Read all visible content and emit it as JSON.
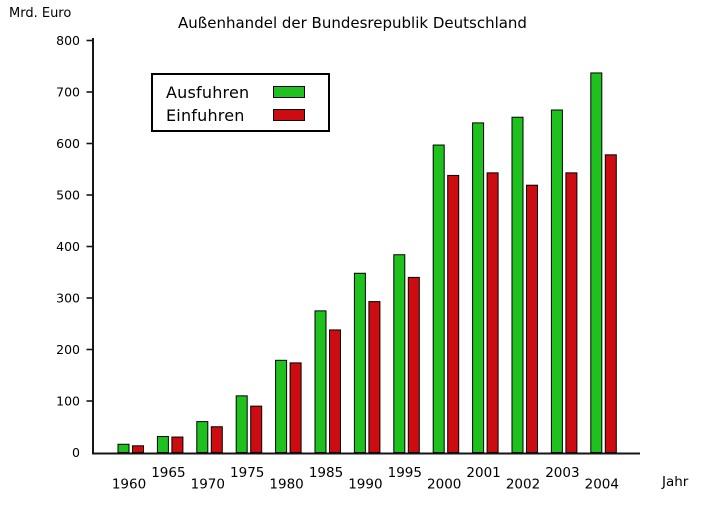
{
  "chart_data": {
    "type": "bar",
    "title": "Außenhandel der Bundesrepublik Deutschland",
    "y_axis_title": "Mrd. Euro",
    "x_axis_title": "Jahr",
    "categories": [
      "1960",
      "1965",
      "1970",
      "1975",
      "1980",
      "1985",
      "1990",
      "1995",
      "2000",
      "2001",
      "2002",
      "2003",
      "2004"
    ],
    "series": [
      {
        "name": "Ausfuhren",
        "color": "#1fc11f",
        "values": [
          16,
          31,
          60,
          110,
          179,
          275,
          348,
          384,
          597,
          640,
          651,
          665,
          737
        ]
      },
      {
        "name": "Einfuhren",
        "color": "#cc0c10",
        "values": [
          13,
          30,
          50,
          90,
          174,
          238,
          293,
          340,
          538,
          543,
          519,
          543,
          578
        ]
      }
    ],
    "ylim": [
      0,
      800
    ],
    "y_ticks": [
      0,
      100,
      200,
      300,
      400,
      500,
      600,
      700,
      800
    ],
    "grid": false,
    "legend_position": "upper-left-inside",
    "axis_color": "#161616",
    "bar_outline_color": "#000000",
    "background_color": "#ffffff"
  }
}
